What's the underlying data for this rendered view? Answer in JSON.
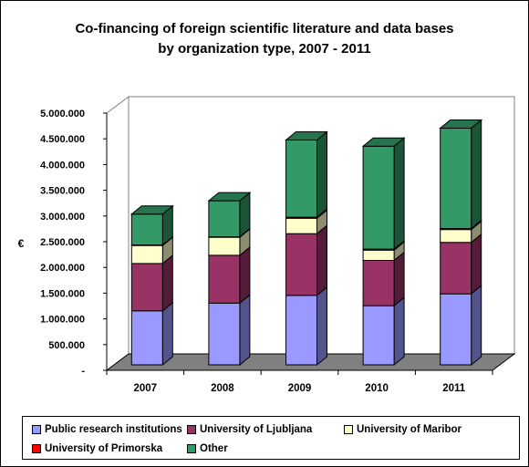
{
  "chart_data": {
    "type": "bar",
    "stacked": true,
    "three_d": true,
    "title": "Co-financing of foreign scientific literature and data bases\nby organization type, 2007 - 2011",
    "xlabel": "",
    "ylabel": "€",
    "ylim": [
      0,
      5000000
    ],
    "yticks": [
      "-",
      "500.000",
      "1.000.000",
      "1.500.000",
      "2.000.000",
      "2.500.000",
      "3.000.000",
      "3.500.000",
      "4.000.000",
      "4.500.000",
      "5.000.000"
    ],
    "categories": [
      "2007",
      "2008",
      "2009",
      "2010",
      "2011"
    ],
    "series": [
      {
        "name": "Public research institutions",
        "color": "#9999ff",
        "values": [
          1050000,
          1200000,
          1350000,
          1150000,
          1380000
        ]
      },
      {
        "name": "University of Ljubljana",
        "color": "#993366",
        "values": [
          920000,
          930000,
          1200000,
          880000,
          1000000
        ]
      },
      {
        "name": "University of Maribor",
        "color": "#ffffcc",
        "values": [
          350000,
          350000,
          300000,
          200000,
          250000
        ]
      },
      {
        "name": "University of Primorska",
        "color": "#ff0000",
        "values": [
          10000,
          10000,
          20000,
          20000,
          20000
        ]
      },
      {
        "name": "Other",
        "color": "#339966",
        "values": [
          600000,
          700000,
          1500000,
          2000000,
          1950000
        ]
      }
    ],
    "grid": false,
    "legend_position": "bottom"
  }
}
